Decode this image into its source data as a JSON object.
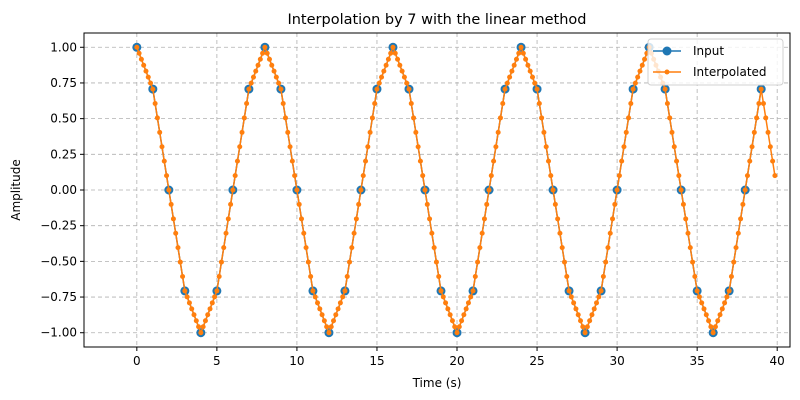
{
  "chart_data": {
    "type": "line",
    "title": "Interpolation by 7 with the linear method",
    "xlabel": "Time (s)",
    "ylabel": "Amplitude",
    "xlim": [
      -3.3,
      40.8
    ],
    "ylim": [
      -1.1,
      1.1
    ],
    "xticks": [
      "0",
      "5",
      "10",
      "15",
      "20",
      "25",
      "30",
      "35",
      "40"
    ],
    "yticks": [
      "1.00",
      "0.75",
      "0.50",
      "0.25",
      "0.00",
      "−0.25",
      "−0.50",
      "−0.75",
      "−1.00"
    ],
    "grid": true,
    "legend_position": "top-right",
    "series": [
      {
        "name": "Input",
        "color": "#1f77b4",
        "marker": "circle",
        "x_start": 0,
        "x_spacing": 1,
        "values": [
          1,
          0.707,
          0,
          -0.707,
          -1,
          -0.707,
          0,
          0.707,
          1,
          0.707,
          0,
          -0.707,
          -1,
          -0.707,
          0,
          0.707,
          1,
          0.707,
          0,
          -0.707,
          -1,
          -0.707,
          0,
          0.707,
          1,
          0.707,
          0,
          -0.707,
          -1,
          -0.707,
          0,
          0.707,
          1,
          0.707,
          0,
          -0.707,
          -1,
          -0.707,
          0,
          0.707
        ]
      },
      {
        "name": "Interpolated",
        "color": "#ff7f0e",
        "marker": "dot",
        "x_start": 0,
        "x_spacing": 0.142857,
        "values": [
          1,
          0.958,
          0.916,
          0.874,
          0.833,
          0.791,
          0.749,
          0.707,
          0.606,
          0.505,
          0.404,
          0.303,
          0.202,
          0.101,
          0,
          -0.101,
          -0.202,
          -0.303,
          -0.404,
          -0.505,
          -0.606,
          -0.707,
          -0.749,
          -0.791,
          -0.833,
          -0.874,
          -0.916,
          -0.958,
          -1,
          -0.958,
          -0.916,
          -0.874,
          -0.833,
          -0.791,
          -0.749,
          -0.707,
          -0.606,
          -0.505,
          -0.404,
          -0.303,
          -0.202,
          -0.101,
          0,
          0.101,
          0.202,
          0.303,
          0.404,
          0.505,
          0.606,
          0.707,
          0.749,
          0.791,
          0.833,
          0.874,
          0.916,
          0.958,
          1,
          0.958,
          0.916,
          0.874,
          0.833,
          0.791,
          0.749,
          0.707,
          0.606,
          0.505,
          0.404,
          0.303,
          0.202,
          0.101,
          0,
          -0.101,
          -0.202,
          -0.303,
          -0.404,
          -0.505,
          -0.606,
          -0.707,
          -0.749,
          -0.791,
          -0.833,
          -0.874,
          -0.916,
          -0.958,
          -1,
          -0.958,
          -0.916,
          -0.874,
          -0.833,
          -0.791,
          -0.749,
          -0.707,
          -0.606,
          -0.505,
          -0.404,
          -0.303,
          -0.202,
          -0.101,
          0,
          0.101,
          0.202,
          0.303,
          0.404,
          0.505,
          0.606,
          0.707,
          0.749,
          0.791,
          0.833,
          0.874,
          0.916,
          0.958,
          1,
          0.958,
          0.916,
          0.874,
          0.833,
          0.791,
          0.749,
          0.707,
          0.606,
          0.505,
          0.404,
          0.303,
          0.202,
          0.101,
          0,
          -0.101,
          -0.202,
          -0.303,
          -0.404,
          -0.505,
          -0.606,
          -0.707,
          -0.749,
          -0.791,
          -0.833,
          -0.874,
          -0.916,
          -0.958,
          -1,
          -0.958,
          -0.916,
          -0.874,
          -0.833,
          -0.791,
          -0.749,
          -0.707,
          -0.606,
          -0.505,
          -0.404,
          -0.303,
          -0.202,
          -0.101,
          0,
          0.101,
          0.202,
          0.303,
          0.404,
          0.505,
          0.606,
          0.707,
          0.749,
          0.791,
          0.833,
          0.874,
          0.916,
          0.958,
          1,
          0.958,
          0.916,
          0.874,
          0.833,
          0.791,
          0.749,
          0.707,
          0.606,
          0.505,
          0.404,
          0.303,
          0.202,
          0.101,
          0,
          -0.101,
          -0.202,
          -0.303,
          -0.404,
          -0.505,
          -0.606,
          -0.707,
          -0.749,
          -0.791,
          -0.833,
          -0.874,
          -0.916,
          -0.958,
          -1,
          -0.958,
          -0.916,
          -0.874,
          -0.833,
          -0.791,
          -0.749,
          -0.707,
          -0.606,
          -0.505,
          -0.404,
          -0.303,
          -0.202,
          -0.101,
          0,
          0.101,
          0.202,
          0.303,
          0.404,
          0.505,
          0.606,
          0.707,
          0.749,
          0.791,
          0.833,
          0.874,
          0.916,
          0.958,
          1,
          0.958,
          0.916,
          0.874,
          0.833,
          0.791,
          0.749,
          0.707,
          0.606,
          0.505,
          0.404,
          0.303,
          0.202,
          0.101,
          0,
          -0.101,
          -0.202,
          -0.303,
          -0.404,
          -0.505,
          -0.606,
          -0.707,
          -0.749,
          -0.791,
          -0.833,
          -0.874,
          -0.916,
          -0.958,
          -1,
          -0.958,
          -0.916,
          -0.874,
          -0.833,
          -0.791,
          -0.749,
          -0.707,
          -0.606,
          -0.505,
          -0.404,
          -0.303,
          -0.202,
          -0.101,
          0,
          0.101,
          0.202,
          0.303,
          0.404,
          0.505,
          0.606,
          0.707,
          0.606,
          0.505,
          0.404,
          0.303,
          0.202,
          0.101
        ]
      }
    ]
  }
}
